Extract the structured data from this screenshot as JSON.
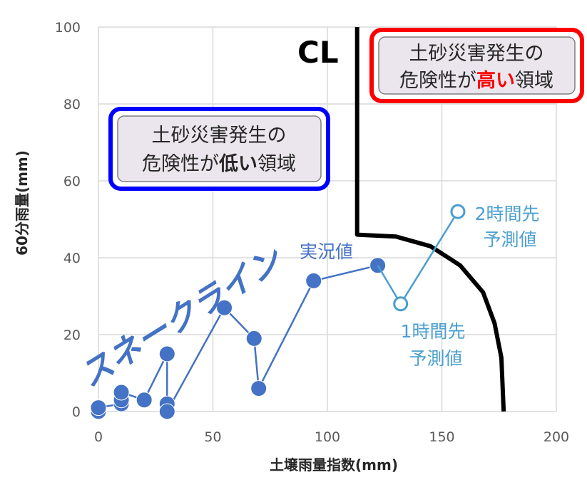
{
  "chart_data": {
    "type": "scatter",
    "xlabel": "土壌雨量指数(mm)",
    "ylabel": "60分雨量(mm)",
    "xlim": [
      0,
      200
    ],
    "ylim": [
      0,
      100
    ],
    "xticks": [
      0,
      50,
      100,
      150,
      200
    ],
    "yticks": [
      0,
      20,
      40,
      60,
      80,
      100
    ],
    "grid": true,
    "series": [
      {
        "name": "実況値",
        "style": "filled-marker-line",
        "color": "#4472c4",
        "x": [
          0,
          0,
          10,
          10,
          10,
          20,
          30,
          30,
          30,
          55,
          68,
          70,
          94,
          122
        ],
        "y": [
          0,
          1,
          2,
          3,
          5,
          3,
          15,
          2,
          0,
          27,
          19,
          6,
          34,
          38
        ]
      },
      {
        "name": "予測値",
        "style": "open-marker-line",
        "color": "#4a9fd0",
        "x": [
          122,
          132,
          157
        ],
        "y": [
          38,
          28,
          52
        ]
      }
    ],
    "cl_line": {
      "label": "CL",
      "color": "#000000",
      "x": [
        113,
        113,
        130,
        145,
        158,
        168,
        173,
        176,
        177
      ],
      "y": [
        100,
        46,
        45.5,
        43,
        38,
        31,
        23,
        14,
        0
      ]
    },
    "annotations": {
      "snake_line": "スネークライン",
      "actual": "実況値",
      "forecast_1h": [
        "1時間先",
        "予測値"
      ],
      "forecast_2h": [
        "2時間先",
        "予測値"
      ],
      "low_risk": {
        "line1": "土砂災害発生の",
        "line2_prefix": "危険性が",
        "line2_emph": "低い",
        "line2_suffix": "領域",
        "border_color": "#0000ff"
      },
      "high_risk": {
        "line1": "土砂災害発生の",
        "line2_prefix": "危険性が",
        "line2_emph": "高い",
        "line2_suffix": "領域",
        "border_color": "#ff0000",
        "emph_color": "#ff0000"
      }
    }
  }
}
